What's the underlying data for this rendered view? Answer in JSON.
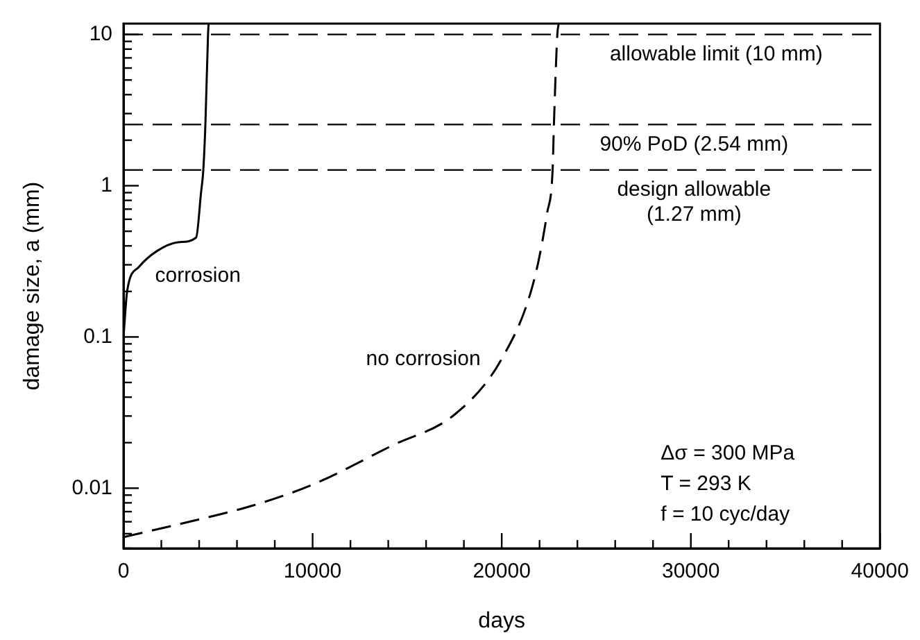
{
  "chart_data": {
    "type": "line",
    "xlabel": "days",
    "ylabel": "damage size, a (mm)",
    "log": "y",
    "grid": false,
    "legend": false,
    "marker": "none",
    "xlim": [
      0,
      40000
    ],
    "ylim": [
      0.004,
      11.8
    ],
    "xticks": [
      0,
      {
        "value": 2000,
        "label": null
      },
      {
        "value": 4000,
        "label": null
      },
      {
        "value": 6000,
        "label": null
      },
      {
        "value": 8000,
        "label": null
      },
      10000,
      {
        "value": 12000,
        "label": null
      },
      {
        "value": 14000,
        "label": null
      },
      {
        "value": 16000,
        "label": null
      },
      {
        "value": 18000,
        "label": null
      },
      20000,
      {
        "value": 22000,
        "label": null
      },
      {
        "value": 24000,
        "label": null
      },
      {
        "value": 26000,
        "label": null
      },
      {
        "value": 28000,
        "label": null
      },
      30000,
      {
        "value": 32000,
        "label": null
      },
      {
        "value": 34000,
        "label": null
      },
      {
        "value": 36000,
        "label": null
      },
      {
        "value": 38000,
        "label": null
      },
      40000
    ],
    "yticks": [
      {
        "value": 0.004,
        "label": null
      },
      {
        "value": 0.005,
        "label": null
      },
      {
        "value": 0.006,
        "label": null
      },
      {
        "value": 0.007,
        "label": null
      },
      {
        "value": 0.008,
        "label": null
      },
      {
        "value": 0.009,
        "label": null
      },
      0.01,
      {
        "value": 0.02,
        "label": null
      },
      {
        "value": 0.03,
        "label": null
      },
      {
        "value": 0.04,
        "label": null
      },
      {
        "value": 0.05,
        "label": null
      },
      {
        "value": 0.06,
        "label": null
      },
      {
        "value": 0.07,
        "label": null
      },
      {
        "value": 0.08,
        "label": null
      },
      {
        "value": 0.09,
        "label": null
      },
      0.1,
      {
        "value": 0.2,
        "label": null
      },
      {
        "value": 0.3,
        "label": null
      },
      {
        "value": 0.4,
        "label": null
      },
      {
        "value": 0.5,
        "label": null
      },
      {
        "value": 0.6,
        "label": null
      },
      {
        "value": 0.7,
        "label": null
      },
      {
        "value": 0.8,
        "label": null
      },
      {
        "value": 0.9,
        "label": null
      },
      1,
      {
        "value": 2,
        "label": null
      },
      {
        "value": 3,
        "label": null
      },
      {
        "value": 4,
        "label": null
      },
      {
        "value": 5,
        "label": null
      },
      {
        "value": 6,
        "label": null
      },
      {
        "value": 7,
        "label": null
      },
      {
        "value": 8,
        "label": null
      },
      {
        "value": 9,
        "label": null
      },
      10
    ],
    "series": [
      {
        "name": "corrosion",
        "color": "#000000",
        "line_style": "solid",
        "x": [
          0,
          200,
          800,
          1770,
          2990,
          3840,
          4100,
          4220,
          4330,
          4470,
          4500
        ],
        "values": [
          0.1,
          0.204,
          0.289,
          0.37,
          0.424,
          0.454,
          0.9,
          1.27,
          2.54,
          10,
          11.8
        ]
      },
      {
        "name": "no corrosion",
        "color": "#000000",
        "line_style": "dashed",
        "x": [
          0,
          3230,
          6870,
          10030,
          14150,
          17550,
          19980,
          21680,
          22400,
          22690,
          22760,
          22940,
          23010
        ],
        "values": [
          0.00475,
          0.0059,
          0.0077,
          0.0106,
          0.019,
          0.031,
          0.071,
          0.23,
          0.66,
          1.27,
          2.54,
          10,
          11.8
        ]
      }
    ],
    "ref_lines": [
      {
        "axis": "y",
        "value": 10,
        "label": "allowable limit (10 mm)",
        "color": "#000000",
        "line_style": "dashed"
      },
      {
        "axis": "y",
        "value": 2.54,
        "label": "90% PoD (2.54 mm)",
        "color": "#000000",
        "line_style": "dashed"
      },
      {
        "axis": "y",
        "value": 1.27,
        "label": "design allowable\n(1.27 mm)",
        "color": "#000000",
        "line_style": "dashed"
      }
    ],
    "annotations": [
      "Δσ = 300 MPa",
      "T = 293 K",
      "f = 10 cyc/day"
    ]
  }
}
